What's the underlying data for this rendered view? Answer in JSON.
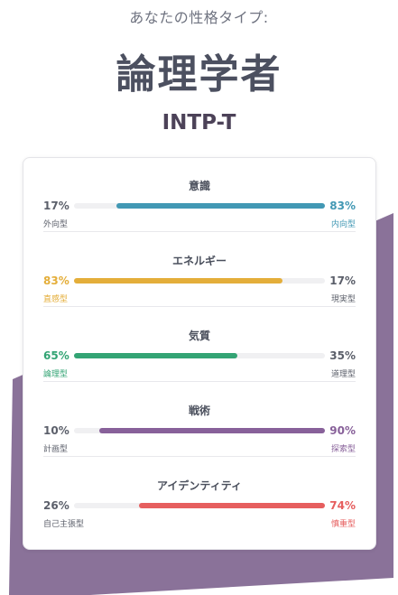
{
  "header": {
    "subtitle": "あなたの性格タイプ:",
    "type_name": "論理学者",
    "type_code": "INTP-T"
  },
  "colors": {
    "background_shape": "#8a7299",
    "mind": "#4298b4",
    "energy": "#e4ae3a",
    "nature": "#33a474",
    "tactics": "#88619a",
    "identity": "#e65e5e",
    "muted_text": "#5b5f6a"
  },
  "traits": [
    {
      "title": "意識",
      "left_pct": "17%",
      "right_pct": "83%",
      "left_label": "外向型",
      "right_label": "内向型",
      "dominant": "right",
      "value": 0.83,
      "color": "#4298b4"
    },
    {
      "title": "エネルギー",
      "left_pct": "83%",
      "right_pct": "17%",
      "left_label": "直感型",
      "right_label": "現実型",
      "dominant": "left",
      "value": 0.83,
      "color": "#e4ae3a"
    },
    {
      "title": "気質",
      "left_pct": "65%",
      "right_pct": "35%",
      "left_label": "論理型",
      "right_label": "道理型",
      "dominant": "left",
      "value": 0.65,
      "color": "#33a474"
    },
    {
      "title": "戦術",
      "left_pct": "10%",
      "right_pct": "90%",
      "left_label": "計画型",
      "right_label": "探索型",
      "dominant": "right",
      "value": 0.9,
      "color": "#88619a"
    },
    {
      "title": "アイデンティティ",
      "left_pct": "26%",
      "right_pct": "74%",
      "left_label": "自己主張型",
      "right_label": "慎重型",
      "dominant": "right",
      "value": 0.74,
      "color": "#e65e5e"
    }
  ]
}
